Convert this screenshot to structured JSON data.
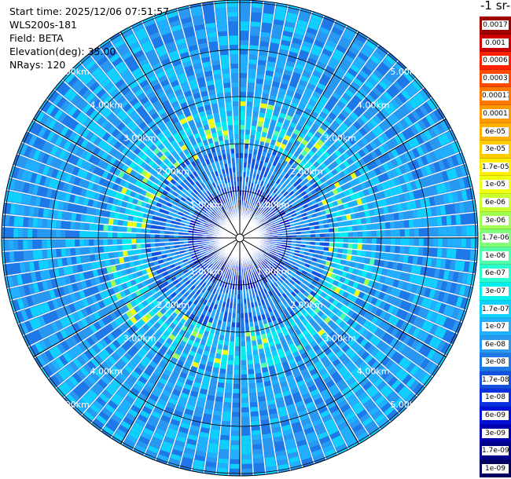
{
  "info": {
    "start_time": "Start time: 2025/12/06 07:51:57",
    "instrument": "WLS200s-181",
    "field": "Field: BETA",
    "elevation": "Elevation(deg): 35.00",
    "nrays": "NRays: 120"
  },
  "colorbar": {
    "unit_label": "-1 sr-",
    "levels": [
      {
        "label": "0.0017",
        "color": "#a00000"
      },
      {
        "label": "0.001",
        "color": "#cc0000"
      },
      {
        "label": "0.0006",
        "color": "#ff2000"
      },
      {
        "label": "0.0003",
        "color": "#ff4a00"
      },
      {
        "label": "0.00017",
        "color": "#ff7800"
      },
      {
        "label": "0.0001",
        "color": "#ff9900"
      },
      {
        "label": "6e-05",
        "color": "#ffb000"
      },
      {
        "label": "3e-05",
        "color": "#ffcc00"
      },
      {
        "label": "1.7e-05",
        "color": "#ffee00"
      },
      {
        "label": "1e-05",
        "color": "#f0ff10"
      },
      {
        "label": "6e-06",
        "color": "#c8ff30"
      },
      {
        "label": "3e-06",
        "color": "#a0ff50"
      },
      {
        "label": "1.7e-06",
        "color": "#80ff78"
      },
      {
        "label": "1e-06",
        "color": "#50ffa8"
      },
      {
        "label": "6e-07",
        "color": "#28ffd0"
      },
      {
        "label": "3e-07",
        "color": "#00f0f0"
      },
      {
        "label": "1.7e-07",
        "color": "#10d0ff"
      },
      {
        "label": "1e-07",
        "color": "#20b0ff"
      },
      {
        "label": "6e-08",
        "color": "#2898f0"
      },
      {
        "label": "3e-08",
        "color": "#1e78e8"
      },
      {
        "label": "1.7e-08",
        "color": "#1450e0"
      },
      {
        "label": "1e-08",
        "color": "#0a30e0"
      },
      {
        "label": "6e-09",
        "color": "#0010d8"
      },
      {
        "label": "3e-09",
        "color": "#0000b0"
      },
      {
        "label": "1.7e-09",
        "color": "#000088"
      },
      {
        "label": "1e-09",
        "color": "#000060"
      }
    ]
  },
  "range_rings": {
    "labels": [
      "1.00km",
      "2.00km",
      "3.00km",
      "4.00km",
      "5.00km"
    ]
  }
}
